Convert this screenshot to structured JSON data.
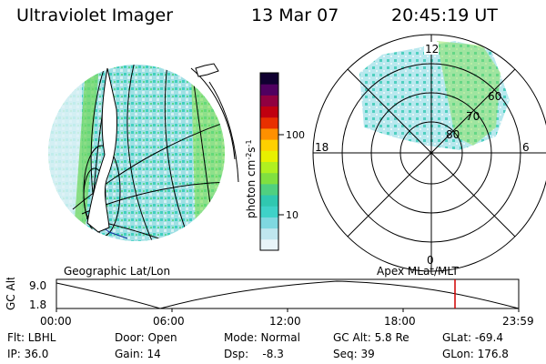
{
  "header": {
    "instrument": "Ultraviolet Imager",
    "date": "13 Mar 07",
    "time": "20:45:19 UT"
  },
  "colorbar": {
    "unit_label": "photon cm",
    "unit_sup1": "-2",
    "unit_s": "s",
    "unit_sup2": "-1",
    "tick_100": "100",
    "tick_10": "10",
    "colors": [
      "#e8f4f8",
      "#bfe6ee",
      "#7fd8e0",
      "#3fd2c8",
      "#30c8b0",
      "#50d080",
      "#80e040",
      "#b0f020",
      "#e8f000",
      "#ffd000",
      "#ff9000",
      "#e83000",
      "#c00010",
      "#900040",
      "#500060",
      "#100030"
    ]
  },
  "left_map": {
    "label": "Geographic Lat/Lon"
  },
  "right_map": {
    "label": "Apex  MLat/MLT",
    "mlt_top": "12",
    "mlt_bottom": "0",
    "mlt_left": "18",
    "mlt_right": "6",
    "lat_60": "60",
    "lat_70": "70",
    "lat_80": "80"
  },
  "orbit": {
    "ylabel": "GC Alt",
    "y_top": "9.0",
    "y_bottom": "1.8",
    "x_ticks": [
      "00:00",
      "06:00",
      "12:00",
      "18:00",
      "23:59"
    ],
    "marker_color": "#d00000"
  },
  "info": {
    "flt": "Flt: LBHL",
    "ip": "IP: 36.0",
    "door": "Door: Open",
    "gain": "Gain: 14",
    "mode": "Mode: Normal",
    "dsp_label": "Dsp:",
    "dsp_value": "-8.3",
    "gcalt": "GC Alt: 5.8 Re",
    "seq": "Seq: 39",
    "glat": "GLat: -69.4",
    "glon": "GLon: 176.8"
  }
}
